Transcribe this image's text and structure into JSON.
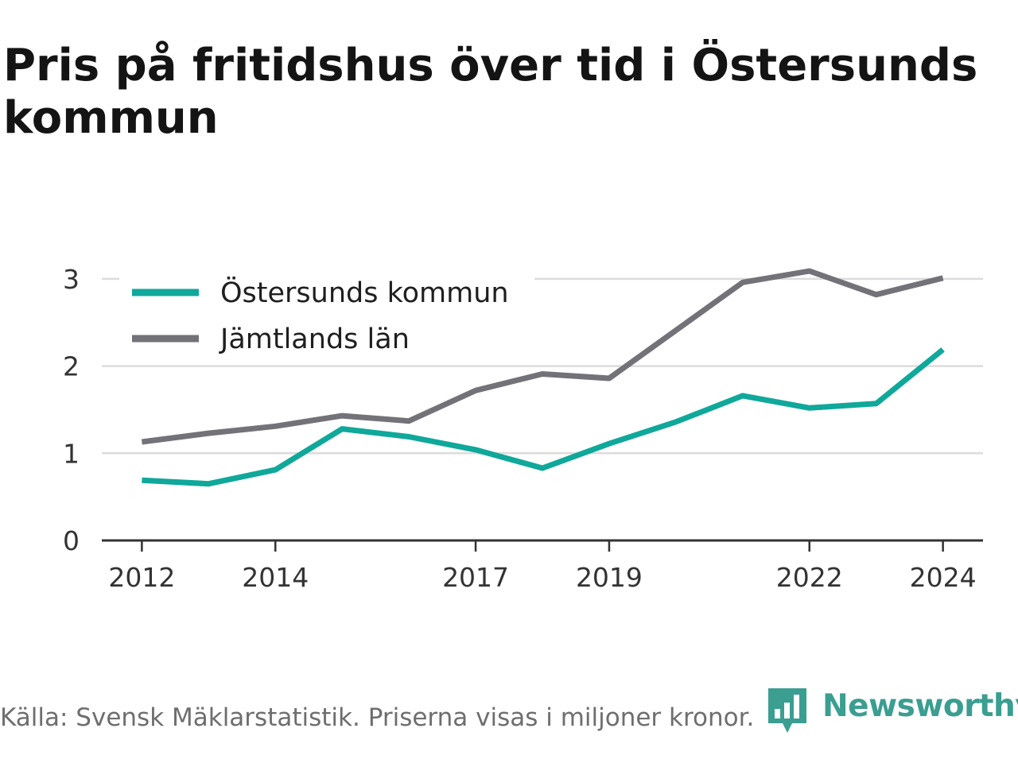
{
  "title": "Pris på fritidshus över tid i Östersunds kommun",
  "footer": "Källa: Svensk Mäklarstatistik. Priserna visas i miljoner kronor.",
  "brand": {
    "name": "Newsworthy",
    "icon": "newsworthy-logo-icon",
    "color": "#3a9e91"
  },
  "chart_data": {
    "type": "line",
    "title": "Pris på fritidshus över tid i Östersunds kommun",
    "xlabel": "",
    "ylabel": "",
    "x": [
      2012,
      2013,
      2014,
      2015,
      2016,
      2017,
      2018,
      2019,
      2020,
      2021,
      2022,
      2023,
      2024
    ],
    "xticks": [
      2012,
      2014,
      2017,
      2019,
      2022,
      2024
    ],
    "yticks": [
      0,
      1,
      2,
      3
    ],
    "xlim": [
      2011.4,
      2024.6
    ],
    "ylim": [
      0,
      3.3
    ],
    "grid": true,
    "legend_position": "top-left",
    "series": [
      {
        "name": "Östersunds kommun",
        "color": "#0fa89a",
        "values": [
          0.69,
          0.65,
          0.81,
          1.28,
          1.19,
          1.04,
          0.83,
          1.11,
          1.36,
          1.66,
          1.52,
          1.57,
          2.19
        ]
      },
      {
        "name": "Jämtlands län",
        "color": "#737278",
        "values": [
          1.13,
          1.23,
          1.31,
          1.43,
          1.37,
          1.72,
          1.91,
          1.86,
          2.41,
          2.96,
          3.09,
          2.82,
          3.01
        ]
      }
    ]
  }
}
